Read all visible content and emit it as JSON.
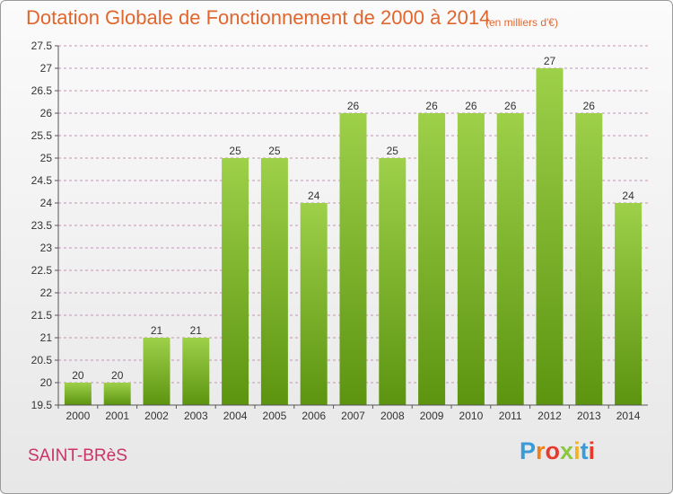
{
  "title": "Dotation Globale de Fonctionnement de 2000 à 2014",
  "subtitle": "(en milliers d'€)",
  "commune": "SAINT-BRèS",
  "logo": {
    "letters": [
      "P",
      "r",
      "o",
      "x",
      "i",
      "t",
      "i"
    ],
    "colors": [
      "#3a9bd8",
      "#ef7f1a",
      "#e63a2e",
      "#8dc63f",
      "#f5b21a",
      "#3a9bd8",
      "#e63a2e"
    ]
  },
  "colors": {
    "bar_top": "#9ed04a",
    "bar_bottom": "#5c9410",
    "grid": "#d28cbe"
  },
  "chart_data": {
    "type": "bar",
    "categories": [
      "2000",
      "2001",
      "2002",
      "2003",
      "2004",
      "2005",
      "2006",
      "2007",
      "2008",
      "2009",
      "2010",
      "2011",
      "2012",
      "2013",
      "2014"
    ],
    "values": [
      20,
      20,
      21,
      21,
      25,
      25,
      24,
      26,
      25,
      26,
      26,
      26,
      27,
      26,
      24
    ],
    "data_labels": [
      "20",
      "20",
      "21",
      "21",
      "25",
      "25",
      "24",
      "26",
      "25",
      "26",
      "26",
      "26",
      "27",
      "26",
      "24"
    ],
    "ylim": [
      19.5,
      27.5
    ],
    "yticks": [
      "19.5",
      "20",
      "20.5",
      "21",
      "21.5",
      "22",
      "22.5",
      "23",
      "23.5",
      "24",
      "24.5",
      "25",
      "25.5",
      "26",
      "26.5",
      "27",
      "27.5"
    ],
    "grid": true,
    "xlabel": "",
    "ylabel": ""
  }
}
